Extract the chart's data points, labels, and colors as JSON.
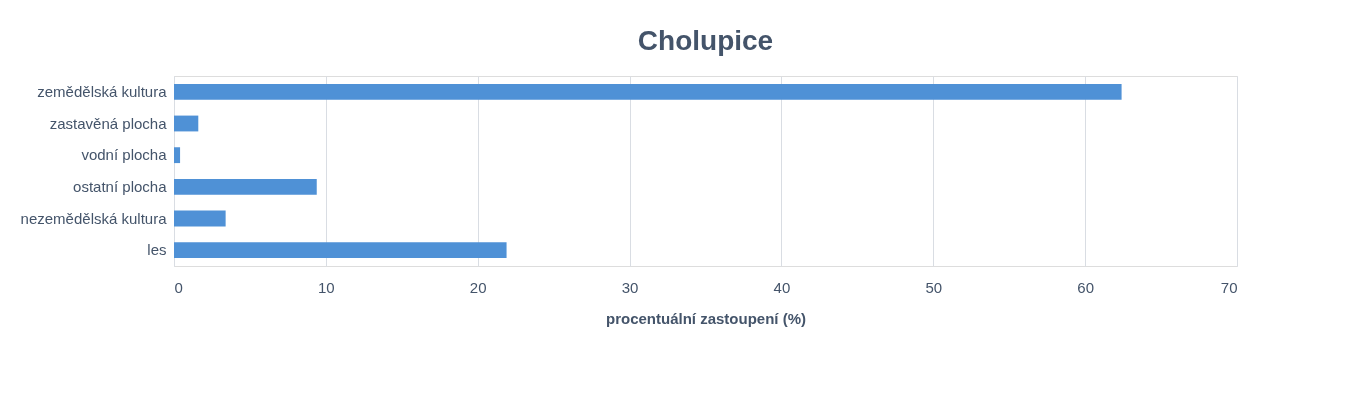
{
  "chart_data": {
    "type": "bar",
    "orientation": "horizontal",
    "title": "Cholupice",
    "xlabel": "procentuální zastoupení (%)",
    "categories": [
      "zemědělská kultura",
      "zastavěná plocha",
      "vodní plocha",
      "ostatní plocha",
      "nezemědělská kultura",
      "les"
    ],
    "values": [
      62.4,
      1.6,
      0.4,
      9.4,
      3.4,
      21.9
    ],
    "color": "#4f91d6",
    "xlim": [
      0,
      70
    ],
    "xticks": [
      0,
      10,
      20,
      30,
      40,
      50,
      60,
      70
    ],
    "grid": "x"
  }
}
